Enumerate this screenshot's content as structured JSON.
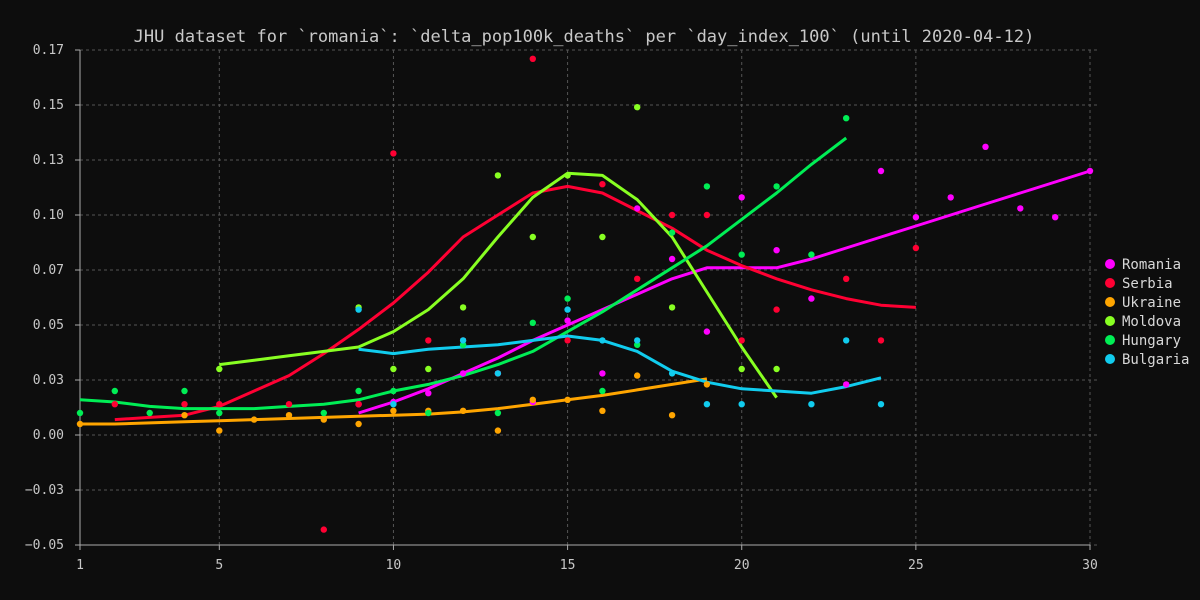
{
  "chart_data": {
    "type": "scatter",
    "title": "JHU dataset for `romania`: `delta_pop100k_deaths` per `day_index_100` (until 2020-04-12)",
    "xlabel": "",
    "ylabel": "",
    "xlim": [
      1,
      30
    ],
    "ylim": [
      -0.05,
      0.175
    ],
    "x_ticks": [
      1,
      5,
      10,
      15,
      20,
      25,
      30
    ],
    "y_ticks": [
      -0.05,
      -0.025,
      0.0,
      0.025,
      0.05,
      0.075,
      0.1,
      0.125,
      0.15,
      0.175
    ],
    "y_tick_labels": [
      "−0.05",
      "−0.03",
      "0.00",
      "0.03",
      "0.05",
      "0.07",
      "0.10",
      "0.13",
      "0.15",
      "0.17"
    ],
    "x_tick_labels": [
      "1",
      "5",
      "10",
      "15",
      "20",
      "25",
      "30"
    ],
    "grid": true,
    "legend_position": "right",
    "series": [
      {
        "name": "Romania",
        "color": "#ff00ff",
        "points": [
          [
            9,
            0.014
          ],
          [
            10,
            0.015
          ],
          [
            11,
            0.019
          ],
          [
            12,
            0.028
          ],
          [
            13,
            0.028
          ],
          [
            14,
            0.015
          ],
          [
            15,
            0.052
          ],
          [
            16,
            0.028
          ],
          [
            17,
            0.103
          ],
          [
            18,
            0.08
          ],
          [
            19,
            0.047
          ],
          [
            20,
            0.108
          ],
          [
            21,
            0.084
          ],
          [
            22,
            0.062
          ],
          [
            23,
            0.023
          ],
          [
            24,
            0.12
          ],
          [
            25,
            0.099
          ],
          [
            26,
            0.108
          ],
          [
            27,
            0.131
          ],
          [
            28,
            0.103
          ],
          [
            29,
            0.099
          ],
          [
            30,
            0.12
          ]
        ],
        "trend": [
          [
            9,
            0.01
          ],
          [
            10,
            0.015
          ],
          [
            11,
            0.021
          ],
          [
            12,
            0.028
          ],
          [
            13,
            0.035
          ],
          [
            14,
            0.043
          ],
          [
            15,
            0.05
          ],
          [
            16,
            0.057
          ],
          [
            17,
            0.064
          ],
          [
            18,
            0.071
          ],
          [
            19,
            0.076
          ],
          [
            20,
            0.076
          ],
          [
            21,
            0.076
          ],
          [
            22,
            0.08
          ],
          [
            23,
            0.085
          ],
          [
            24,
            0.09
          ],
          [
            25,
            0.095
          ],
          [
            26,
            0.1
          ],
          [
            27,
            0.105
          ],
          [
            28,
            0.11
          ],
          [
            29,
            0.115
          ],
          [
            30,
            0.12
          ]
        ]
      },
      {
        "name": "Serbia",
        "color": "#ff0033",
        "points": [
          [
            2,
            0.014
          ],
          [
            4,
            0.014
          ],
          [
            5,
            0.014
          ],
          [
            7,
            0.014
          ],
          [
            8,
            -0.043
          ],
          [
            9,
            0.014
          ],
          [
            10,
            0.128
          ],
          [
            11,
            0.043
          ],
          [
            12,
            0.043
          ],
          [
            13,
            0.028
          ],
          [
            14,
            0.171
          ],
          [
            15,
            0.043
          ],
          [
            16,
            0.114
          ],
          [
            17,
            0.071
          ],
          [
            18,
            0.1
          ],
          [
            19,
            0.1
          ],
          [
            20,
            0.043
          ],
          [
            21,
            0.057
          ],
          [
            23,
            0.071
          ],
          [
            24,
            0.043
          ],
          [
            25,
            0.085
          ]
        ],
        "trend": [
          [
            2,
            0.007
          ],
          [
            3,
            0.008
          ],
          [
            4,
            0.009
          ],
          [
            5,
            0.013
          ],
          [
            6,
            0.02
          ],
          [
            7,
            0.027
          ],
          [
            8,
            0.037
          ],
          [
            9,
            0.048
          ],
          [
            10,
            0.06
          ],
          [
            11,
            0.074
          ],
          [
            12,
            0.09
          ],
          [
            13,
            0.1
          ],
          [
            14,
            0.11
          ],
          [
            15,
            0.113
          ],
          [
            16,
            0.11
          ],
          [
            17,
            0.102
          ],
          [
            18,
            0.094
          ],
          [
            19,
            0.084
          ],
          [
            20,
            0.077
          ],
          [
            21,
            0.071
          ],
          [
            22,
            0.066
          ],
          [
            23,
            0.062
          ],
          [
            24,
            0.059
          ],
          [
            25,
            0.058
          ]
        ]
      },
      {
        "name": "Ukraine",
        "color": "#ffa500",
        "points": [
          [
            1,
            0.005
          ],
          [
            4,
            0.009
          ],
          [
            5,
            0.002
          ],
          [
            6,
            0.007
          ],
          [
            7,
            0.009
          ],
          [
            8,
            0.007
          ],
          [
            9,
            0.005
          ],
          [
            10,
            0.011
          ],
          [
            11,
            0.011
          ],
          [
            12,
            0.011
          ],
          [
            13,
            0.002
          ],
          [
            14,
            0.016
          ],
          [
            15,
            0.016
          ],
          [
            16,
            0.011
          ],
          [
            17,
            0.027
          ],
          [
            18,
            0.009
          ],
          [
            19,
            0.023
          ]
        ],
        "trend": [
          [
            1,
            0.005
          ],
          [
            2,
            0.005
          ],
          [
            3,
            0.0055
          ],
          [
            4,
            0.006
          ],
          [
            5,
            0.0065
          ],
          [
            6,
            0.007
          ],
          [
            7,
            0.0075
          ],
          [
            8,
            0.008
          ],
          [
            9,
            0.0085
          ],
          [
            10,
            0.009
          ],
          [
            11,
            0.0095
          ],
          [
            12,
            0.0105
          ],
          [
            13,
            0.012
          ],
          [
            14,
            0.014
          ],
          [
            15,
            0.016
          ],
          [
            16,
            0.018
          ],
          [
            17,
            0.0205
          ],
          [
            18,
            0.023
          ],
          [
            19,
            0.0255
          ]
        ]
      },
      {
        "name": "Moldova",
        "color": "#88ff22",
        "points": [
          [
            5,
            0.03
          ],
          [
            9,
            0.058
          ],
          [
            10,
            0.03
          ],
          [
            11,
            0.03
          ],
          [
            12,
            0.058
          ],
          [
            13,
            0.118
          ],
          [
            14,
            0.09
          ],
          [
            15,
            0.118
          ],
          [
            16,
            0.09
          ],
          [
            17,
            0.149
          ],
          [
            18,
            0.058
          ],
          [
            20,
            0.03
          ],
          [
            21,
            0.03
          ]
        ],
        "trend": [
          [
            5,
            0.032
          ],
          [
            6,
            0.034
          ],
          [
            7,
            0.036
          ],
          [
            8,
            0.038
          ],
          [
            9,
            0.04
          ],
          [
            10,
            0.047
          ],
          [
            11,
            0.057
          ],
          [
            12,
            0.071
          ],
          [
            13,
            0.09
          ],
          [
            14,
            0.108
          ],
          [
            15,
            0.119
          ],
          [
            16,
            0.118
          ],
          [
            17,
            0.107
          ],
          [
            18,
            0.09
          ],
          [
            19,
            0.065
          ],
          [
            20,
            0.04
          ],
          [
            21,
            0.017
          ]
        ]
      },
      {
        "name": "Hungary",
        "color": "#00ee55",
        "points": [
          [
            1,
            0.01
          ],
          [
            2,
            0.02
          ],
          [
            3,
            0.01
          ],
          [
            4,
            0.02
          ],
          [
            5,
            0.01
          ],
          [
            8,
            0.01
          ],
          [
            9,
            0.02
          ],
          [
            10,
            0.02
          ],
          [
            11,
            0.01
          ],
          [
            12,
            0.041
          ],
          [
            13,
            0.01
          ],
          [
            14,
            0.051
          ],
          [
            15,
            0.062
          ],
          [
            16,
            0.02
          ],
          [
            17,
            0.041
          ],
          [
            18,
            0.092
          ],
          [
            19,
            0.113
          ],
          [
            20,
            0.082
          ],
          [
            21,
            0.113
          ],
          [
            22,
            0.082
          ],
          [
            23,
            0.144
          ]
        ],
        "trend": [
          [
            1,
            0.016
          ],
          [
            2,
            0.015
          ],
          [
            3,
            0.013
          ],
          [
            4,
            0.012
          ],
          [
            5,
            0.012
          ],
          [
            6,
            0.012
          ],
          [
            7,
            0.013
          ],
          [
            8,
            0.014
          ],
          [
            9,
            0.016
          ],
          [
            10,
            0.02
          ],
          [
            11,
            0.023
          ],
          [
            12,
            0.027
          ],
          [
            13,
            0.032
          ],
          [
            14,
            0.038
          ],
          [
            15,
            0.047
          ],
          [
            16,
            0.056
          ],
          [
            17,
            0.066
          ],
          [
            18,
            0.076
          ],
          [
            19,
            0.086
          ],
          [
            20,
            0.098
          ],
          [
            21,
            0.11
          ],
          [
            22,
            0.123
          ],
          [
            23,
            0.135
          ]
        ]
      },
      {
        "name": "Bulgaria",
        "color": "#11ccee",
        "points": [
          [
            9,
            0.057
          ],
          [
            10,
            0.014
          ],
          [
            12,
            0.043
          ],
          [
            13,
            0.028
          ],
          [
            15,
            0.057
          ],
          [
            16,
            0.043
          ],
          [
            17,
            0.043
          ],
          [
            18,
            0.028
          ],
          [
            19,
            0.014
          ],
          [
            20,
            0.014
          ],
          [
            22,
            0.014
          ],
          [
            23,
            0.043
          ],
          [
            24,
            0.014
          ]
        ],
        "trend": [
          [
            9,
            0.039
          ],
          [
            10,
            0.037
          ],
          [
            11,
            0.039
          ],
          [
            12,
            0.04
          ],
          [
            13,
            0.041
          ],
          [
            14,
            0.043
          ],
          [
            15,
            0.045
          ],
          [
            16,
            0.043
          ],
          [
            17,
            0.038
          ],
          [
            18,
            0.029
          ],
          [
            19,
            0.024
          ],
          [
            20,
            0.021
          ],
          [
            21,
            0.02
          ],
          [
            22,
            0.019
          ],
          [
            23,
            0.022
          ],
          [
            24,
            0.026
          ]
        ]
      }
    ]
  }
}
